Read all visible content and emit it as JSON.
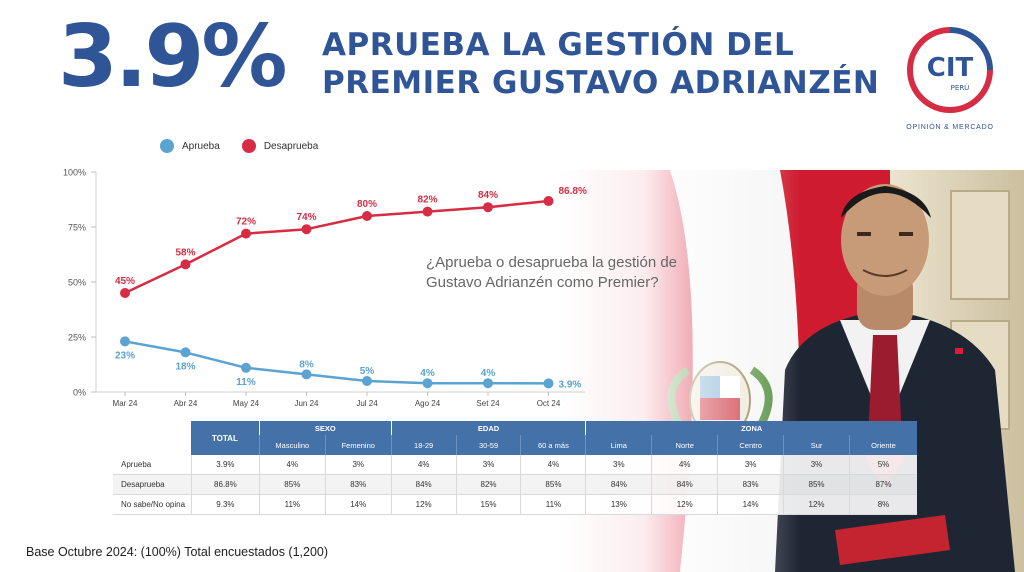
{
  "header": {
    "big_percent": "3.9%",
    "headline_line1": "APRUEBA LA GESTIÓN DEL",
    "headline_line2": "PREMIER GUSTAVO ADRIANZÉN"
  },
  "logo": {
    "text": "CIT",
    "sub": "PERÚ",
    "tagline": "OPINIÓN & MERCADO"
  },
  "colors": {
    "aprueba": "#5ba3d0",
    "desaprueba": "#d62d44",
    "brand_blue": "#2f5597",
    "table_header": "#4472a8"
  },
  "question": "¿Aprueba o desaprueba la gestión de Gustavo Adrianzén como Premier?",
  "chart_data": {
    "type": "line",
    "categories": [
      "Mar 24",
      "Abr 24",
      "May 24",
      "Jun 24",
      "Jul 24",
      "Ago 24",
      "Set 24",
      "Oct 24"
    ],
    "series": [
      {
        "name": "Aprueba",
        "values": [
          23,
          18,
          11,
          8,
          5,
          4,
          4,
          3.9
        ],
        "labels": [
          "23%",
          "18%",
          "11%",
          "8%",
          "5%",
          "4%",
          "4%",
          "3.9%"
        ]
      },
      {
        "name": "Desaprueba",
        "values": [
          45,
          58,
          72,
          74,
          80,
          82,
          84,
          86.8
        ],
        "labels": [
          "45%",
          "58%",
          "72%",
          "74%",
          "80%",
          "82%",
          "84%",
          "86.8%"
        ]
      }
    ],
    "yticks": [
      "0%",
      "25%",
      "50%",
      "75%",
      "100%"
    ],
    "ylim": [
      0,
      100
    ],
    "legend": "top-left",
    "grid": false
  },
  "table": {
    "total_header": "TOTAL",
    "groups": [
      {
        "name": "SEXO",
        "subs": [
          "Masculino",
          "Femenino"
        ]
      },
      {
        "name": "EDAD",
        "subs": [
          "18-29",
          "30-59",
          "60 a más"
        ]
      },
      {
        "name": "ZONA",
        "subs": [
          "Lima",
          "Norte",
          "Centro",
          "Sur",
          "Oriente"
        ]
      }
    ],
    "rows": [
      {
        "label": "Aprueba",
        "values": [
          "3.9%",
          "4%",
          "3%",
          "4%",
          "3%",
          "4%",
          "3%",
          "4%",
          "3%",
          "3%",
          "5%"
        ]
      },
      {
        "label": "Desaprueba",
        "values": [
          "86.8%",
          "85%",
          "83%",
          "84%",
          "82%",
          "85%",
          "84%",
          "84%",
          "83%",
          "85%",
          "87%"
        ]
      },
      {
        "label": "No sabe/No opina",
        "values": [
          "9.3%",
          "11%",
          "14%",
          "12%",
          "15%",
          "11%",
          "13%",
          "12%",
          "14%",
          "12%",
          "8%"
        ]
      }
    ]
  },
  "footnote": "Base Octubre 2024: (100%) Total encuestados (1,200)"
}
